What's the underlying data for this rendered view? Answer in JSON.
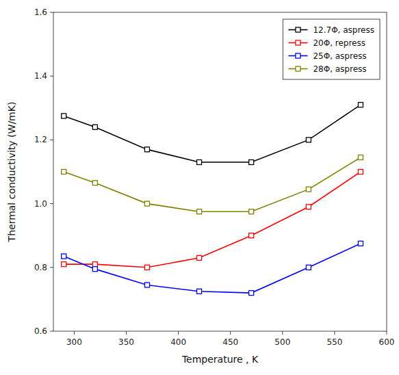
{
  "chart_data": {
    "type": "line",
    "xlabel": "Temperature , K",
    "ylabel": "Thermal conductivity (W/mK)",
    "x": [
      290,
      320,
      370,
      420,
      470,
      525,
      575
    ],
    "series": [
      {
        "name": "12.7Φ, aspress",
        "color": "black",
        "values": [
          1.275,
          1.24,
          1.17,
          1.13,
          1.13,
          1.2,
          1.31
        ]
      },
      {
        "name": "20Φ, repress",
        "color": "red",
        "values": [
          0.81,
          0.81,
          0.8,
          0.83,
          0.9,
          0.99,
          1.1
        ]
      },
      {
        "name": "25Φ, aspress",
        "color": "blue",
        "values": [
          0.835,
          0.795,
          0.745,
          0.725,
          0.72,
          0.8,
          0.875
        ]
      },
      {
        "name": "28Φ, aspress",
        "color": "#808000",
        "values": [
          1.1,
          1.065,
          1.0,
          0.975,
          0.975,
          1.045,
          1.145
        ]
      }
    ],
    "xlim": [
      280,
      600
    ],
    "ylim": [
      0.6,
      1.6
    ],
    "xticks": [
      300,
      350,
      400,
      450,
      500,
      550,
      600
    ],
    "yticks": [
      0.6,
      0.8,
      {
        "value": 1.0,
        "label": "1.0"
      },
      1.2,
      1.4,
      1.6
    ],
    "legend": "upper right",
    "marker": "square"
  }
}
